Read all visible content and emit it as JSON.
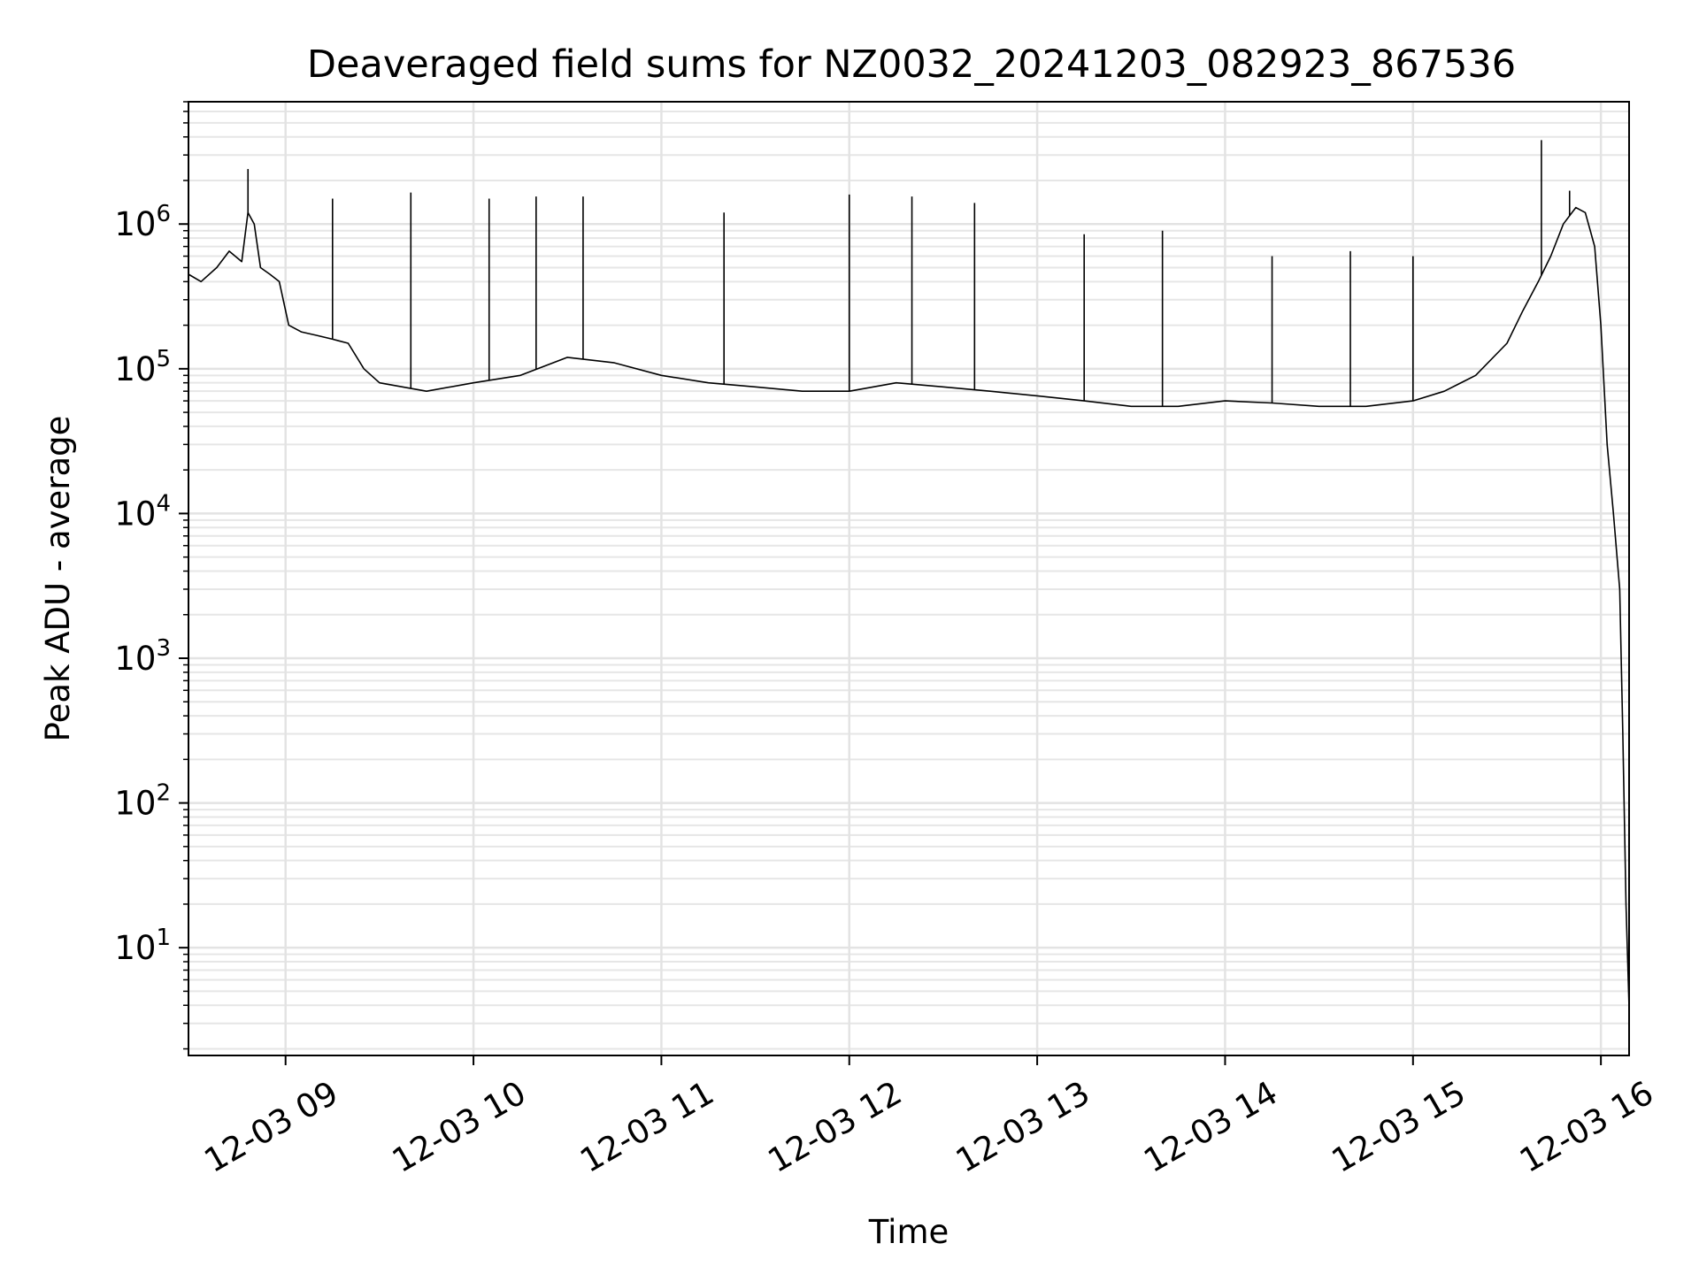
{
  "chart_data": {
    "type": "line",
    "title": "Deaveraged field sums for NZ0032_20241203_082923_867536",
    "xlabel": "Time",
    "ylabel": "Peak ADU - average",
    "yscale": "log",
    "xlim": [
      "2024-12-03 08:29",
      "2024-12-03 16:09"
    ],
    "ylim": [
      1.8,
      7000000
    ],
    "grid": {
      "major": true,
      "minor_y": true
    },
    "x_ticks": [
      {
        "value": "2024-12-03 09:00",
        "label": "12-03 09"
      },
      {
        "value": "2024-12-03 10:00",
        "label": "12-03 10"
      },
      {
        "value": "2024-12-03 11:00",
        "label": "12-03 11"
      },
      {
        "value": "2024-12-03 12:00",
        "label": "12-03 12"
      },
      {
        "value": "2024-12-03 13:00",
        "label": "12-03 13"
      },
      {
        "value": "2024-12-03 14:00",
        "label": "12-03 14"
      },
      {
        "value": "2024-12-03 15:00",
        "label": "12-03 15"
      },
      {
        "value": "2024-12-03 16:00",
        "label": "12-03 16"
      }
    ],
    "y_ticks": [
      {
        "value": 10,
        "base": "10",
        "exp": "1"
      },
      {
        "value": 100,
        "base": "10",
        "exp": "2"
      },
      {
        "value": 1000,
        "base": "10",
        "exp": "3"
      },
      {
        "value": 10000,
        "base": "10",
        "exp": "4"
      },
      {
        "value": 100000,
        "base": "10",
        "exp": "5"
      },
      {
        "value": 1000000,
        "base": "10",
        "exp": "6"
      }
    ],
    "series": [
      {
        "color": "#000000",
        "x": [
          "2024-12-03 08:29",
          "2024-12-03 08:33",
          "2024-12-03 08:38",
          "2024-12-03 08:42",
          "2024-12-03 08:46",
          "2024-12-03 08:48",
          "2024-12-03 08:50",
          "2024-12-03 08:52",
          "2024-12-03 08:55",
          "2024-12-03 08:58",
          "2024-12-03 09:01",
          "2024-12-03 09:05",
          "2024-12-03 09:10",
          "2024-12-03 09:15",
          "2024-12-03 09:20",
          "2024-12-03 09:25",
          "2024-12-03 09:30",
          "2024-12-03 09:45",
          "2024-12-03 10:00",
          "2024-12-03 10:15",
          "2024-12-03 10:30",
          "2024-12-03 10:45",
          "2024-12-03 11:00",
          "2024-12-03 11:15",
          "2024-12-03 11:30",
          "2024-12-03 11:45",
          "2024-12-03 12:00",
          "2024-12-03 12:15",
          "2024-12-03 12:30",
          "2024-12-03 12:45",
          "2024-12-03 13:00",
          "2024-12-03 13:15",
          "2024-12-03 13:30",
          "2024-12-03 13:45",
          "2024-12-03 14:00",
          "2024-12-03 14:15",
          "2024-12-03 14:30",
          "2024-12-03 14:45",
          "2024-12-03 15:00",
          "2024-12-03 15:10",
          "2024-12-03 15:20",
          "2024-12-03 15:30",
          "2024-12-03 15:35",
          "2024-12-03 15:40",
          "2024-12-03 15:44",
          "2024-12-03 15:48",
          "2024-12-03 15:52",
          "2024-12-03 15:55",
          "2024-12-03 15:58",
          "2024-12-03 16:00",
          "2024-12-03 16:02",
          "2024-12-03 16:04",
          "2024-12-03 16:06",
          "2024-12-03 16:07",
          "2024-12-03 16:08",
          "2024-12-03 16:09"
        ],
        "y": [
          450000,
          400000,
          500000,
          650000,
          550000,
          1200000,
          1000000,
          500000,
          450000,
          400000,
          200000,
          180000,
          170000,
          160000,
          150000,
          100000,
          80000,
          70000,
          80000,
          90000,
          120000,
          110000,
          90000,
          80000,
          75000,
          70000,
          70000,
          80000,
          75000,
          70000,
          65000,
          60000,
          55000,
          55000,
          60000,
          58000,
          55000,
          55000,
          60000,
          70000,
          90000,
          150000,
          250000,
          400000,
          600000,
          1000000,
          1300000,
          1200000,
          700000,
          200000,
          30000,
          10000,
          3000,
          300,
          20,
          3.8
        ]
      }
    ],
    "spikes": {
      "x": [
        "2024-12-03 08:48",
        "2024-12-03 09:15",
        "2024-12-03 09:40",
        "2024-12-03 10:05",
        "2024-12-03 10:20",
        "2024-12-03 10:35",
        "2024-12-03 11:20",
        "2024-12-03 12:00",
        "2024-12-03 12:20",
        "2024-12-03 12:40",
        "2024-12-03 13:15",
        "2024-12-03 13:40",
        "2024-12-03 14:15",
        "2024-12-03 14:40",
        "2024-12-03 15:00",
        "2024-12-03 15:41",
        "2024-12-03 15:50"
      ],
      "y": [
        2400000,
        1500000,
        1650000,
        1500000,
        1550000,
        1550000,
        1200000,
        1600000,
        1550000,
        1400000,
        850000,
        900000,
        600000,
        650000,
        600000,
        3800000,
        1700000
      ]
    }
  }
}
